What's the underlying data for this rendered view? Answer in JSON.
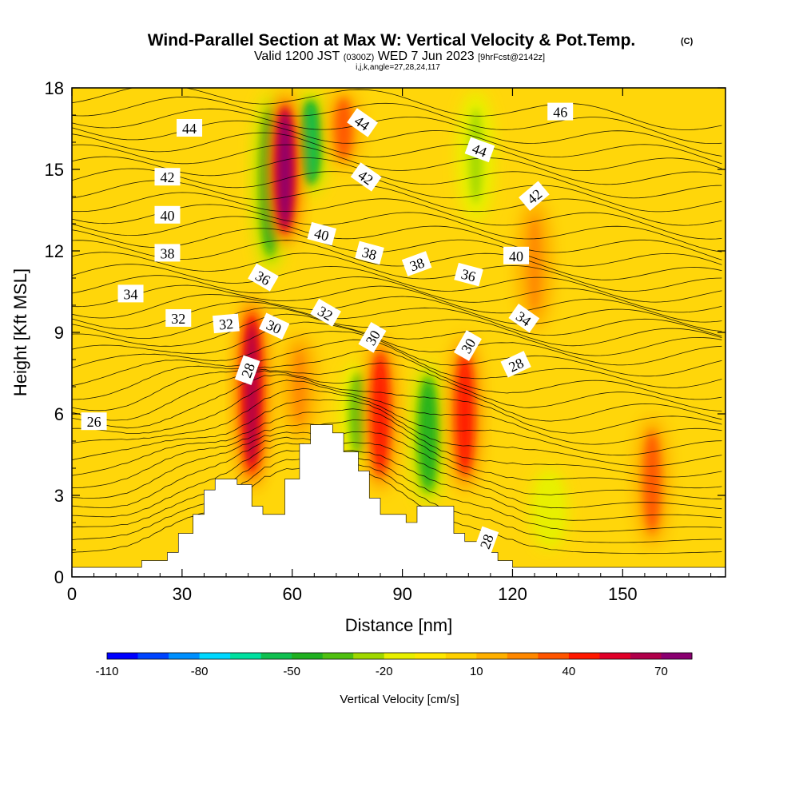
{
  "chart_data": {
    "type": "heatmap",
    "title": "Wind-Parallel Section at Max W: Vertical Velocity & Pot.Temp.",
    "copyright_mark": "(C)",
    "subtitle": {
      "valid": "Valid 1200 JST",
      "utc": "(0300Z)",
      "date": "WED 7 Jun 2023",
      "forecast": "[9hrFcst@2142z]"
    },
    "indices_line": "i,j,k,angle=27,28,24,117",
    "xlabel": "Distance [nm]",
    "ylabel": "Height [Kft MSL]",
    "xlim": [
      0,
      178
    ],
    "ylim": [
      0,
      18
    ],
    "x_ticks": [
      0,
      30,
      60,
      90,
      120,
      150
    ],
    "y_ticks": [
      0,
      3,
      6,
      9,
      12,
      15,
      18
    ],
    "colorbar": {
      "label": "Vertical Velocity [cm/s]",
      "levels_min": -110,
      "levels_max": 80,
      "step": 10,
      "tick_labels": [
        "-110",
        "-80",
        "-50",
        "-20",
        "10",
        "40",
        "70"
      ],
      "colors": [
        "#0000ff",
        "#0044ff",
        "#0090ff",
        "#00d8ff",
        "#00e0a0",
        "#10c050",
        "#20b020",
        "#50c010",
        "#a0d800",
        "#e8f000",
        "#ffe800",
        "#ffd000",
        "#ffb000",
        "#ff8800",
        "#ff5500",
        "#ff1800",
        "#e00028",
        "#b0004a",
        "#8a0070"
      ]
    },
    "updrafts": [
      {
        "x": 49,
        "y_range": [
          3,
          10.5
        ],
        "w": 60
      },
      {
        "x": 58,
        "y_range": [
          12,
          18
        ],
        "w": 75
      },
      {
        "x": 62,
        "y_range": [
          5,
          9
        ],
        "w": 25
      },
      {
        "x": 74,
        "y_range": [
          15,
          18
        ],
        "w": 35
      },
      {
        "x": 84,
        "y_range": [
          3,
          9
        ],
        "w": 40
      },
      {
        "x": 107,
        "y_range": [
          3,
          9
        ],
        "w": 45
      },
      {
        "x": 126,
        "y_range": [
          9,
          14
        ],
        "w": 25
      },
      {
        "x": 158,
        "y_range": [
          1,
          6
        ],
        "w": 30
      }
    ],
    "downdrafts": [
      {
        "x": 54,
        "y_range": [
          11,
          18
        ],
        "w": -45
      },
      {
        "x": 65,
        "y_range": [
          14,
          18
        ],
        "w": -60
      },
      {
        "x": 78,
        "y_range": [
          4,
          8
        ],
        "w": -40
      },
      {
        "x": 97,
        "y_range": [
          2.5,
          8
        ],
        "w": -45
      },
      {
        "x": 110,
        "y_range": [
          13,
          18
        ],
        "w": -25
      },
      {
        "x": 130,
        "y_range": [
          1,
          4
        ],
        "w": -20
      }
    ],
    "terrain_profile": [
      [
        0,
        0.35
      ],
      [
        19,
        0.35
      ],
      [
        19,
        0.6
      ],
      [
        26,
        0.6
      ],
      [
        26,
        0.9
      ],
      [
        29,
        0.9
      ],
      [
        29,
        1.6
      ],
      [
        33,
        1.6
      ],
      [
        33,
        2.3
      ],
      [
        36,
        2.3
      ],
      [
        36,
        3.2
      ],
      [
        39,
        3.2
      ],
      [
        39,
        3.6
      ],
      [
        45,
        3.6
      ],
      [
        45,
        3.4
      ],
      [
        49,
        3.4
      ],
      [
        49,
        2.6
      ],
      [
        52,
        2.6
      ],
      [
        52,
        2.3
      ],
      [
        58,
        2.3
      ],
      [
        58,
        3.6
      ],
      [
        62,
        3.6
      ],
      [
        62,
        4.9
      ],
      [
        65,
        4.9
      ],
      [
        65,
        5.6
      ],
      [
        71,
        5.6
      ],
      [
        71,
        5.3
      ],
      [
        74,
        5.3
      ],
      [
        74,
        4.6
      ],
      [
        78,
        4.6
      ],
      [
        78,
        3.9
      ],
      [
        81,
        3.9
      ],
      [
        81,
        2.9
      ],
      [
        84,
        2.9
      ],
      [
        84,
        2.3
      ],
      [
        91,
        2.3
      ],
      [
        91,
        2.0
      ],
      [
        94,
        2.0
      ],
      [
        94,
        2.6
      ],
      [
        104,
        2.6
      ],
      [
        104,
        1.6
      ],
      [
        107,
        1.6
      ],
      [
        107,
        1.3
      ],
      [
        112,
        1.3
      ],
      [
        112,
        0.9
      ],
      [
        116,
        0.9
      ],
      [
        116,
        0.6
      ],
      [
        120,
        0.6
      ],
      [
        120,
        0.35
      ],
      [
        178,
        0.35
      ]
    ],
    "isentrope_labels": [
      {
        "text": "44",
        "x": 32,
        "y": 16.5,
        "angle": 0
      },
      {
        "text": "42",
        "x": 26,
        "y": 14.7,
        "angle": 0
      },
      {
        "text": "40",
        "x": 26,
        "y": 13.3,
        "angle": 0
      },
      {
        "text": "38",
        "x": 26,
        "y": 11.9,
        "angle": 0
      },
      {
        "text": "34",
        "x": 16,
        "y": 10.4,
        "angle": 0
      },
      {
        "text": "32",
        "x": 29,
        "y": 9.5,
        "angle": 0
      },
      {
        "text": "32",
        "x": 42,
        "y": 9.3,
        "angle": -5
      },
      {
        "text": "30",
        "x": 55,
        "y": 9.2,
        "angle": 25
      },
      {
        "text": "28",
        "x": 48,
        "y": 7.6,
        "angle": -70
      },
      {
        "text": "26",
        "x": 6,
        "y": 5.7,
        "angle": 0
      },
      {
        "text": "36",
        "x": 52,
        "y": 11.0,
        "angle": 30
      },
      {
        "text": "40",
        "x": 68,
        "y": 12.6,
        "angle": 15
      },
      {
        "text": "38",
        "x": 81,
        "y": 11.9,
        "angle": 15
      },
      {
        "text": "38",
        "x": 94,
        "y": 11.5,
        "angle": -20
      },
      {
        "text": "36",
        "x": 108,
        "y": 11.1,
        "angle": 15
      },
      {
        "text": "32",
        "x": 69,
        "y": 9.7,
        "angle": 30
      },
      {
        "text": "30",
        "x": 82,
        "y": 8.8,
        "angle": -60
      },
      {
        "text": "30",
        "x": 108,
        "y": 8.5,
        "angle": -60
      },
      {
        "text": "28",
        "x": 121,
        "y": 7.8,
        "angle": -25
      },
      {
        "text": "34",
        "x": 123,
        "y": 9.5,
        "angle": 35
      },
      {
        "text": "40",
        "x": 121,
        "y": 11.8,
        "angle": 0
      },
      {
        "text": "42",
        "x": 80,
        "y": 14.7,
        "angle": 35
      },
      {
        "text": "44",
        "x": 79,
        "y": 16.7,
        "angle": 35
      },
      {
        "text": "44",
        "x": 111,
        "y": 15.7,
        "angle": 20
      },
      {
        "text": "42",
        "x": 126,
        "y": 14.0,
        "angle": -40
      },
      {
        "text": "46",
        "x": 133,
        "y": 17.1,
        "angle": 0
      },
      {
        "text": "28",
        "x": 113,
        "y": 1.3,
        "angle": -70
      }
    ]
  }
}
